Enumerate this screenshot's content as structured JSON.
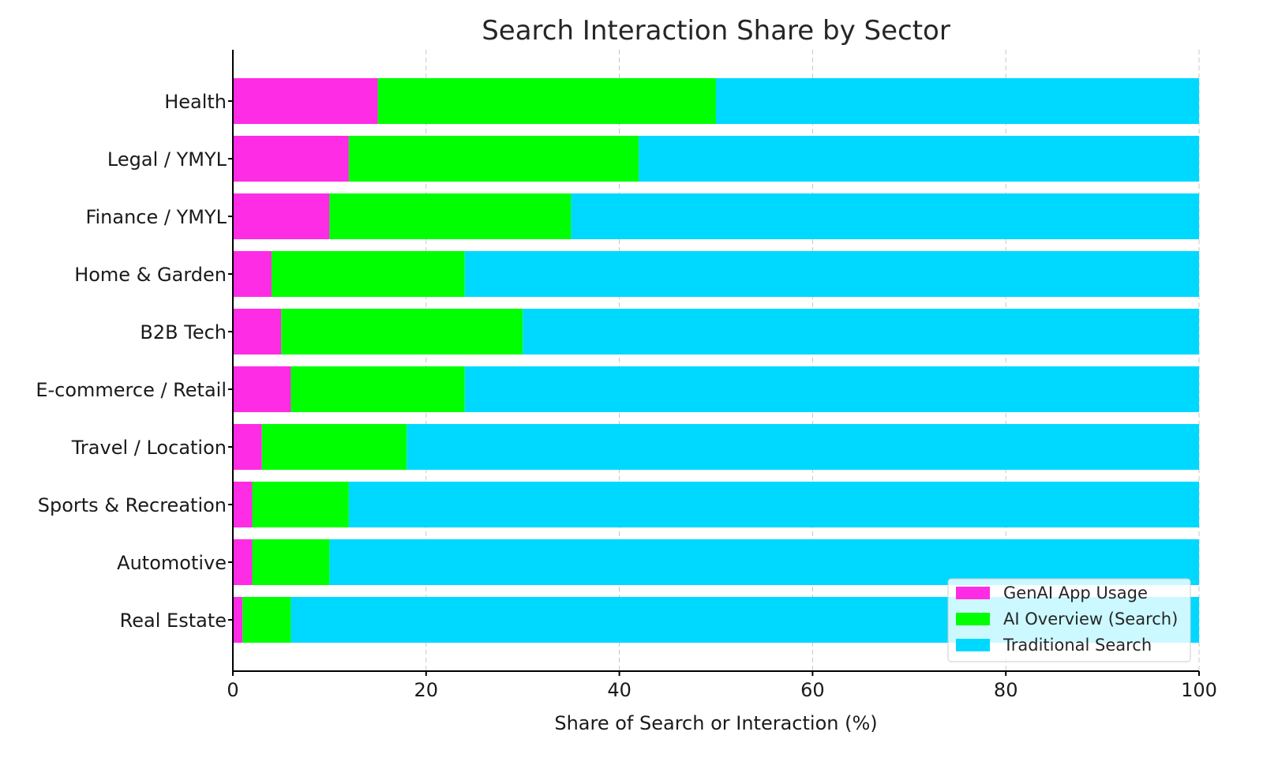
{
  "chart_data": {
    "type": "bar",
    "orientation": "horizontal",
    "stacked": true,
    "title": "Search Interaction Share by Sector",
    "xlabel": "Share of Search or Interaction (%)",
    "ylabel": "",
    "xlim": [
      0,
      100
    ],
    "xticks": [
      0,
      20,
      40,
      60,
      80,
      100
    ],
    "grid": "x-dashed",
    "legend_position": "bottom-right",
    "categories": [
      "Health",
      "Legal / YMYL",
      "Finance / YMYL",
      "Home & Garden",
      "B2B Tech",
      "E-commerce / Retail",
      "Travel / Location",
      "Sports & Recreation",
      "Automotive",
      "Real Estate"
    ],
    "series": [
      {
        "name": "GenAI App Usage",
        "color": "#ff2ce5",
        "values": [
          15,
          12,
          10,
          4,
          5,
          6,
          3,
          2,
          2,
          1
        ]
      },
      {
        "name": "AI Overview (Search)",
        "color": "#00ff00",
        "values": [
          35,
          30,
          25,
          20,
          25,
          18,
          15,
          10,
          8,
          5
        ]
      },
      {
        "name": "Traditional Search",
        "color": "#00d9ff",
        "values": [
          50,
          58,
          65,
          76,
          70,
          76,
          82,
          88,
          90,
          94
        ]
      }
    ]
  }
}
